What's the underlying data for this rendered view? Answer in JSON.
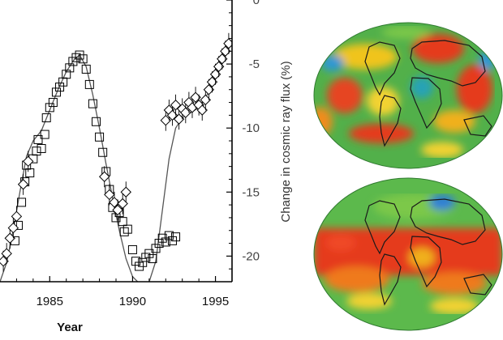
{
  "chart_data": {
    "type": "scatter",
    "xlabel": "Year",
    "ylabel": "Change in cosmic ray flux (%)",
    "xlim": [
      1982,
      1996
    ],
    "ylim": [
      -22,
      0
    ],
    "x_ticks": [
      "1985",
      "1990",
      "1995"
    ],
    "y_ticks": [
      "0",
      "-5",
      "-10",
      "-15",
      "-20"
    ],
    "grid": false,
    "legend": "none",
    "series": [
      {
        "marker": "square",
        "points": [
          [
            1982.9,
            -18.8
          ],
          [
            1983.1,
            -17.6
          ],
          [
            1983.3,
            -15.8
          ],
          [
            1983.5,
            -14.2
          ],
          [
            1983.6,
            -12.9
          ],
          [
            1983.8,
            -13.5
          ],
          [
            1984.0,
            -12.4
          ],
          [
            1984.2,
            -11.8
          ],
          [
            1984.3,
            -10.9
          ],
          [
            1984.5,
            -11.6
          ],
          [
            1984.7,
            -10.5
          ],
          [
            1984.8,
            -9.2
          ],
          [
            1985.0,
            -8.4
          ],
          [
            1985.2,
            -8.0
          ],
          [
            1985.4,
            -7.2
          ],
          [
            1985.6,
            -6.8
          ],
          [
            1985.8,
            -6.4
          ],
          [
            1986.0,
            -5.8
          ],
          [
            1986.2,
            -5.3
          ],
          [
            1986.4,
            -4.8
          ],
          [
            1986.6,
            -4.5
          ],
          [
            1986.8,
            -4.3
          ],
          [
            1987.0,
            -4.6
          ],
          [
            1987.2,
            -5.4
          ],
          [
            1987.4,
            -6.6
          ],
          [
            1987.6,
            -8.1
          ],
          [
            1987.8,
            -9.5
          ],
          [
            1988.0,
            -10.7
          ],
          [
            1988.2,
            -11.9
          ],
          [
            1988.4,
            -13.4
          ],
          [
            1988.6,
            -14.8
          ],
          [
            1988.8,
            -16.2
          ],
          [
            1989.0,
            -17.0
          ],
          [
            1989.2,
            -16.6
          ],
          [
            1989.4,
            -17.3
          ],
          [
            1989.5,
            -18.1
          ],
          [
            1989.7,
            -17.9
          ],
          [
            1990.0,
            -19.5
          ],
          [
            1990.2,
            -20.4
          ],
          [
            1990.4,
            -20.8
          ],
          [
            1990.6,
            -20.5
          ],
          [
            1990.8,
            -20.1
          ],
          [
            1991.0,
            -19.8
          ],
          [
            1991.2,
            -20.2
          ],
          [
            1991.4,
            -19.4
          ],
          [
            1991.6,
            -19.0
          ],
          [
            1991.8,
            -18.6
          ],
          [
            1992.0,
            -18.9
          ],
          [
            1992.2,
            -18.4
          ],
          [
            1992.4,
            -18.8
          ],
          [
            1992.6,
            -18.5
          ]
        ]
      },
      {
        "marker": "diamond",
        "points": [
          [
            1982.2,
            -20.4
          ],
          [
            1982.4,
            -19.8
          ],
          [
            1982.6,
            -18.6
          ],
          [
            1982.8,
            -17.8
          ],
          [
            1983.0,
            -16.9
          ],
          [
            1983.4,
            -14.4
          ],
          [
            1983.7,
            -12.6
          ],
          [
            1988.3,
            -13.8
          ],
          [
            1988.6,
            -15.2
          ],
          [
            1988.9,
            -15.8
          ],
          [
            1989.1,
            -16.4
          ],
          [
            1989.4,
            -15.9
          ],
          [
            1989.6,
            -15.0
          ],
          [
            1992.0,
            -9.4
          ],
          [
            1992.2,
            -8.6
          ],
          [
            1992.4,
            -9.0
          ],
          [
            1992.6,
            -8.2
          ],
          [
            1992.8,
            -9.3
          ],
          [
            1993.0,
            -8.5
          ],
          [
            1993.2,
            -8.8
          ],
          [
            1993.4,
            -8.0
          ],
          [
            1993.6,
            -8.4
          ],
          [
            1993.8,
            -7.6
          ],
          [
            1994.0,
            -8.2
          ],
          [
            1994.2,
            -8.6
          ],
          [
            1994.4,
            -7.8
          ],
          [
            1994.6,
            -7.0
          ],
          [
            1994.8,
            -6.4
          ],
          [
            1995.0,
            -5.8
          ],
          [
            1995.2,
            -5.2
          ],
          [
            1995.4,
            -4.6
          ],
          [
            1995.6,
            -4.0
          ],
          [
            1995.8,
            -3.4
          ]
        ]
      },
      {
        "marker": "line",
        "points": [
          [
            1982.0,
            -22
          ],
          [
            1982.4,
            -20.5
          ],
          [
            1982.8,
            -18.0
          ],
          [
            1983.2,
            -15.0
          ],
          [
            1983.6,
            -12.2
          ],
          [
            1984.0,
            -11.0
          ],
          [
            1984.5,
            -10.2
          ],
          [
            1985.0,
            -8.6
          ],
          [
            1985.5,
            -7.0
          ],
          [
            1986.0,
            -5.6
          ],
          [
            1986.5,
            -4.6
          ],
          [
            1986.8,
            -4.3
          ],
          [
            1987.2,
            -5.2
          ],
          [
            1987.6,
            -7.4
          ],
          [
            1988.0,
            -10.0
          ],
          [
            1988.4,
            -12.8
          ],
          [
            1988.8,
            -15.5
          ],
          [
            1989.2,
            -18.0
          ],
          [
            1989.6,
            -20.2
          ],
          [
            1990.0,
            -21.6
          ],
          [
            1990.3,
            -22.0
          ]
        ]
      },
      {
        "marker": "line",
        "points": [
          [
            1991.0,
            -22.0
          ],
          [
            1991.4,
            -20.4
          ],
          [
            1991.8,
            -16.4
          ],
          [
            1992.2,
            -12.4
          ],
          [
            1992.6,
            -10.0
          ],
          [
            1993.0,
            -9.2
          ],
          [
            1993.5,
            -8.8
          ],
          [
            1994.0,
            -8.4
          ],
          [
            1994.5,
            -7.4
          ],
          [
            1995.0,
            -6.0
          ],
          [
            1995.5,
            -4.6
          ],
          [
            1996.0,
            -3.2
          ]
        ]
      }
    ]
  },
  "maps": {
    "top_label": "",
    "bottom_label": ""
  }
}
